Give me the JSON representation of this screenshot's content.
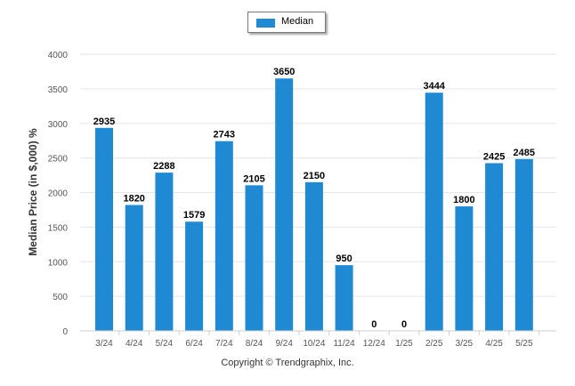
{
  "colors": {
    "bar": "#1f89d4",
    "grid": "#e6e6e6",
    "axis_text": "#555555",
    "label": "#000000"
  },
  "legend": {
    "label": "Median",
    "placement": "top-center"
  },
  "footer": {
    "copyright": "Copyright © Trendgraphix, Inc."
  },
  "chart_data": {
    "type": "bar",
    "title": "",
    "xlabel": "",
    "ylabel": "Median Price (in $,000) %",
    "ylim": [
      0,
      4000
    ],
    "yticks": [
      0,
      500,
      1000,
      1500,
      2000,
      2500,
      3000,
      3500,
      4000
    ],
    "grid": true,
    "categories": [
      "3/24",
      "4/24",
      "5/24",
      "6/24",
      "7/24",
      "8/24",
      "9/24",
      "10/24",
      "11/24",
      "12/24",
      "1/25",
      "2/25",
      "3/25",
      "4/25",
      "5/25"
    ],
    "series": [
      {
        "name": "Median",
        "values": [
          2935,
          1820,
          2288,
          1579,
          2743,
          2105,
          3650,
          2150,
          950,
          0,
          0,
          3444,
          1800,
          2425,
          2485
        ]
      }
    ]
  }
}
